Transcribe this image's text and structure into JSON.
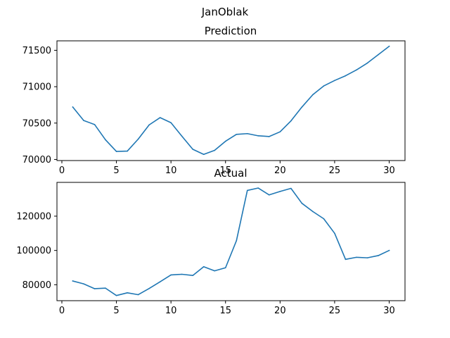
{
  "suptitle": "JanOblak",
  "colors": {
    "line": "#1f77b4",
    "axes": "#000000",
    "background": "#ffffff"
  },
  "chart_data": [
    {
      "type": "line",
      "title": "Prediction",
      "xlabel": "",
      "ylabel": "",
      "grid": false,
      "xlim": [
        -0.45,
        31.45
      ],
      "ylim": [
        69985,
        71630
      ],
      "xticks": [
        0,
        5,
        10,
        15,
        20,
        25,
        30
      ],
      "xtick_labels": [
        "0",
        "5",
        "10",
        "15",
        "20",
        "25",
        "30"
      ],
      "yticks": [
        70000,
        70500,
        71000,
        71500
      ],
      "ytick_labels": [
        "70000",
        "70500",
        "71000",
        "71500"
      ],
      "series": [
        {
          "x": [
            1,
            2,
            3,
            4,
            5,
            6,
            7,
            8,
            9,
            10,
            11,
            12,
            13,
            14,
            15,
            16,
            17,
            18,
            19,
            20,
            21,
            22,
            23,
            24,
            25,
            26,
            27,
            28,
            29,
            30
          ],
          "values": [
            70720,
            70535,
            70480,
            70270,
            70110,
            70115,
            70280,
            70475,
            70575,
            70505,
            70320,
            70140,
            70070,
            70125,
            70250,
            70345,
            70355,
            70325,
            70315,
            70380,
            70530,
            70720,
            70890,
            71010,
            71085,
            71150,
            71230,
            71325,
            71440,
            71555
          ]
        }
      ]
    },
    {
      "type": "line",
      "title": "Actual",
      "xlabel": "",
      "ylabel": "",
      "grid": false,
      "xlim": [
        -0.45,
        31.45
      ],
      "ylim": [
        70700,
        139700
      ],
      "xticks": [
        0,
        5,
        10,
        15,
        20,
        25,
        30
      ],
      "xtick_labels": [
        "0",
        "5",
        "10",
        "15",
        "20",
        "25",
        "30"
      ],
      "yticks": [
        80000,
        100000,
        120000
      ],
      "ytick_labels": [
        "80000",
        "100000",
        "120000"
      ],
      "series": [
        {
          "x": [
            1,
            2,
            3,
            4,
            5,
            6,
            7,
            8,
            9,
            10,
            11,
            12,
            13,
            14,
            15,
            16,
            17,
            18,
            19,
            20,
            21,
            22,
            23,
            24,
            25,
            26,
            27,
            28,
            29,
            30
          ],
          "values": [
            82200,
            80500,
            77700,
            78000,
            73700,
            75300,
            74200,
            77800,
            81700,
            85700,
            86100,
            85400,
            90500,
            88100,
            89900,
            105700,
            135000,
            136400,
            132400,
            134400,
            136200,
            127500,
            122700,
            118500,
            110000,
            94800,
            96000,
            95700,
            97000,
            100000
          ]
        }
      ]
    }
  ]
}
